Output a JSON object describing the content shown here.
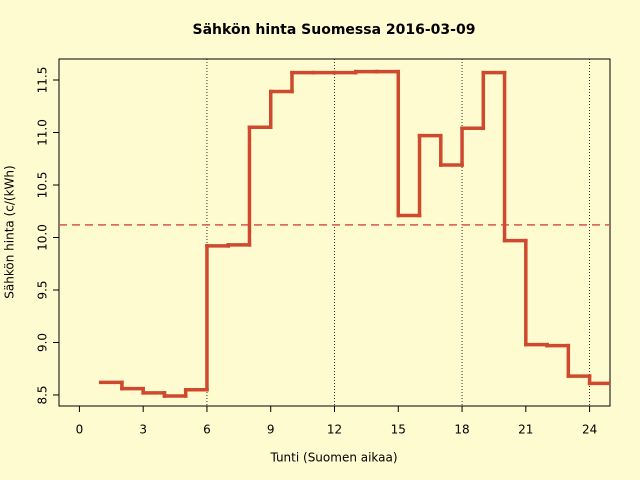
{
  "chart_data": {
    "type": "step",
    "title": "Sähkön hinta Suomessa 2016-03-09",
    "x_label": "Tunti (Suomen aikaa)",
    "y_label": "Sähkön hinta (c/(kWh)",
    "x": [
      1,
      2,
      3,
      4,
      5,
      6,
      7,
      8,
      9,
      10,
      11,
      12,
      13,
      14,
      15,
      16,
      17,
      18,
      19,
      20,
      21,
      22,
      23,
      24,
      25
    ],
    "series": [
      {
        "color": "#cd4a2f",
        "values": [
          8.62,
          8.56,
          8.52,
          8.49,
          8.55,
          9.92,
          9.93,
          11.05,
          11.39,
          11.57,
          11.57,
          11.57,
          11.58,
          11.58,
          10.21,
          10.97,
          10.69,
          11.04,
          11.57,
          9.97,
          8.98,
          8.97,
          8.68,
          8.61,
          8.61
        ]
      }
    ],
    "mean_line": 10.12,
    "mean_color": "#d9574a",
    "vlines": [
      6,
      12,
      18,
      24
    ],
    "xlim": [
      -0.96,
      24.96
    ],
    "ylim": [
      8.395,
      11.7
    ],
    "xticks": [
      0,
      3,
      6,
      9,
      12,
      15,
      18,
      21,
      24
    ],
    "yticks": [
      8.5,
      {
        "value": 9,
        "label": "9.0"
      },
      9.5,
      {
        "value": 10,
        "label": "10.0"
      },
      10.5,
      {
        "value": 11,
        "label": "11.0"
      },
      11.5
    ]
  }
}
